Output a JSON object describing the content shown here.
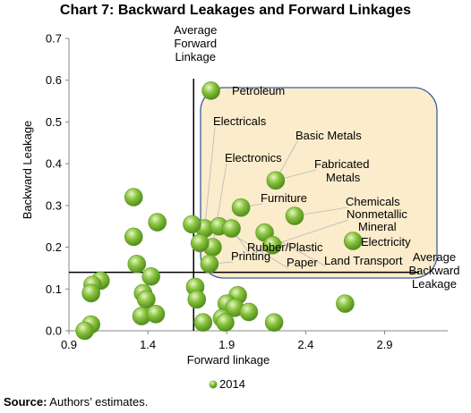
{
  "chart_data": {
    "type": "scatter",
    "title": "Chart 7: Backward Leakages and Forward Linkages",
    "xlabel": "Forward linkage",
    "ylabel": "Backward Leakage",
    "xlim": [
      0.9,
      3.3
    ],
    "ylim": [
      0.0,
      0.7
    ],
    "xticks": [
      "0.9",
      "1.4",
      "1.9",
      "2.4",
      "2.9"
    ],
    "yticks": [
      "0.0",
      "0.1",
      "0.2",
      "0.3",
      "0.4",
      "0.5",
      "0.6",
      "0.7"
    ],
    "grid": false,
    "legend": {
      "position": "bottom",
      "entries": [
        "2014"
      ]
    },
    "marker_color": "#8ac43f",
    "highlight_color": "#fbeccb",
    "highlight_border": "#3e5e9c",
    "reference_lines": {
      "avg_forward_x": 1.69,
      "avg_backward_y": 0.14,
      "avg_forward_label": [
        "Average",
        "Forward",
        "Linkage"
      ],
      "avg_backward_label": [
        "Average",
        "Backward",
        "Leakage"
      ]
    },
    "series": [
      {
        "name": "2014",
        "points": [
          {
            "x": 1.8,
            "y": 0.575
          },
          {
            "x": 1.76,
            "y": 0.245
          },
          {
            "x": 2.21,
            "y": 0.36
          },
          {
            "x": 1.99,
            "y": 0.295
          },
          {
            "x": 2.33,
            "y": 0.275
          },
          {
            "x": 1.85,
            "y": 0.25
          },
          {
            "x": 1.93,
            "y": 0.245
          },
          {
            "x": 1.81,
            "y": 0.2
          },
          {
            "x": 2.14,
            "y": 0.235
          },
          {
            "x": 2.19,
            "y": 0.205
          },
          {
            "x": 2.7,
            "y": 0.215
          },
          {
            "x": 1.79,
            "y": 0.16
          },
          {
            "x": 1.31,
            "y": 0.32
          },
          {
            "x": 1.46,
            "y": 0.26
          },
          {
            "x": 1.31,
            "y": 0.225
          },
          {
            "x": 1.68,
            "y": 0.255
          },
          {
            "x": 1.73,
            "y": 0.21
          },
          {
            "x": 1.33,
            "y": 0.16
          },
          {
            "x": 1.42,
            "y": 0.13
          },
          {
            "x": 1.1,
            "y": 0.12
          },
          {
            "x": 1.05,
            "y": 0.11
          },
          {
            "x": 1.37,
            "y": 0.09
          },
          {
            "x": 1.39,
            "y": 0.075
          },
          {
            "x": 1.04,
            "y": 0.09
          },
          {
            "x": 1.36,
            "y": 0.035
          },
          {
            "x": 1.45,
            "y": 0.04
          },
          {
            "x": 1.04,
            "y": 0.015
          },
          {
            "x": 1.0,
            "y": 0.0
          },
          {
            "x": 1.7,
            "y": 0.105
          },
          {
            "x": 1.71,
            "y": 0.075
          },
          {
            "x": 1.97,
            "y": 0.085
          },
          {
            "x": 1.9,
            "y": 0.065
          },
          {
            "x": 1.95,
            "y": 0.055
          },
          {
            "x": 2.04,
            "y": 0.045
          },
          {
            "x": 1.87,
            "y": 0.03
          },
          {
            "x": 1.75,
            "y": 0.02
          },
          {
            "x": 1.89,
            "y": 0.02
          },
          {
            "x": 2.2,
            "y": 0.02
          },
          {
            "x": 2.65,
            "y": 0.065
          }
        ]
      }
    ],
    "annotations": [
      {
        "text": "Petroleum",
        "x": 1.8,
        "y": 0.575
      },
      {
        "text": "Electricals",
        "x": 1.76,
        "y": 0.245
      },
      {
        "text": "Electronics",
        "x": 1.81,
        "y": 0.2
      },
      {
        "text": "Basic Metals",
        "x": 2.21,
        "y": 0.36
      },
      {
        "text": "Fabricated",
        "x": 2.21,
        "y": 0.36
      },
      {
        "text": "Metals",
        "x": 2.21,
        "y": 0.36
      },
      {
        "text": "Furniture",
        "x": 1.99,
        "y": 0.295
      },
      {
        "text": "Chemicals",
        "x": 2.33,
        "y": 0.275
      },
      {
        "text": "Nonmetallic",
        "x": 2.19,
        "y": 0.205
      },
      {
        "text": "Mineral",
        "x": 2.19,
        "y": 0.205
      },
      {
        "text": "Electricity",
        "x": 2.7,
        "y": 0.215
      },
      {
        "text": "Rubber/Plastic",
        "x": 1.93,
        "y": 0.245
      },
      {
        "text": "Printing",
        "x": 1.79,
        "y": 0.16
      },
      {
        "text": "Paper",
        "x": 1.85,
        "y": 0.25
      },
      {
        "text": "Land Transport",
        "x": 2.14,
        "y": 0.235
      }
    ]
  },
  "source": {
    "label": "Source:",
    "text": " Authors’ estimates."
  }
}
